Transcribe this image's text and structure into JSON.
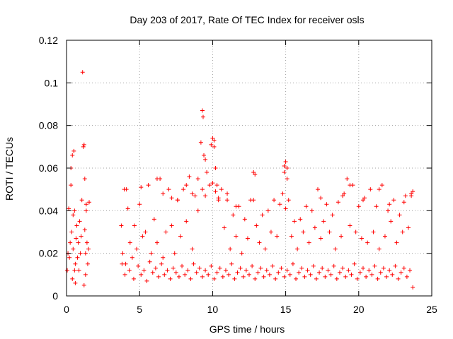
{
  "chart_data": {
    "type": "scatter",
    "title": "Day 203 of 2017, Rate Of TEC Index for receiver osls",
    "xlabel": "GPS time / hours",
    "ylabel": "ROTI / TECUs",
    "xlim": [
      0,
      25
    ],
    "ylim": [
      0,
      0.12
    ],
    "xticks": [
      0,
      5,
      10,
      15,
      20,
      25
    ],
    "xtick_labels": [
      "0",
      "5",
      "10",
      "15",
      "20",
      "25"
    ],
    "yticks": [
      0,
      0.02,
      0.04,
      0.06,
      0.08,
      0.1,
      0.12
    ],
    "ytick_labels": [
      "0",
      "0.02",
      "0.04",
      "0.06",
      "0.08",
      "0.1",
      "0.12"
    ],
    "grid": true,
    "marker": "+",
    "color": "#ff0000",
    "series": [
      {
        "x": [
          0.05,
          0.1,
          0.15,
          0.2,
          0.25,
          0.3,
          0.35,
          0.4,
          0.45,
          0.5,
          0.55,
          0.6,
          0.65,
          0.7,
          0.75,
          0.8,
          0.85,
          0.9,
          0.95,
          1.0,
          1.05,
          1.1,
          1.15,
          1.2,
          1.25,
          1.3,
          1.35,
          1.4,
          1.45,
          1.5,
          1.55,
          0.4,
          0.55,
          0.6,
          1.2,
          1.25,
          1.3,
          1.35,
          0.3,
          0.45,
          3.75,
          3.85,
          3.95,
          4.05,
          4.2,
          4.35,
          4.5,
          4.65,
          4.8,
          5.0,
          5.2,
          5.4,
          5.6,
          5.8,
          6.0,
          6.2,
          6.4,
          6.6,
          6.8,
          7.0,
          7.2,
          7.4,
          7.6,
          7.8,
          8.0,
          8.2,
          8.4,
          8.6,
          8.8,
          9.0,
          9.2,
          9.3,
          9.35,
          9.4,
          9.5,
          9.6,
          9.8,
          10.0,
          10.1,
          10.2,
          10.3,
          10.4,
          10.6,
          10.8,
          11.0,
          11.2,
          11.4,
          11.6,
          11.8,
          12.0,
          12.2,
          12.4,
          12.6,
          12.8,
          12.9,
          13.0,
          13.2,
          13.4,
          13.6,
          13.8,
          14.0,
          14.2,
          14.4,
          14.6,
          14.8,
          14.9,
          15.0,
          15.1,
          15.2,
          15.4,
          15.6,
          15.8,
          16.0,
          16.2,
          16.4,
          16.6,
          16.8,
          17.0,
          17.2,
          17.4,
          17.6,
          17.8,
          18.0,
          18.2,
          18.4,
          18.6,
          18.8,
          19.0,
          19.2,
          19.4,
          19.6,
          19.8,
          20.0,
          20.2,
          20.4,
          20.6,
          20.8,
          21.0,
          21.2,
          21.4,
          21.6,
          21.8,
          22.0,
          22.2,
          22.4,
          22.6,
          22.8,
          23.0,
          23.2,
          23.4,
          23.6,
          23.7,
          3.8,
          4.0,
          4.3,
          4.6,
          4.9,
          5.1,
          5.3,
          5.5,
          5.7,
          5.9,
          6.1,
          6.3,
          6.5,
          6.7,
          6.9,
          7.1,
          7.3,
          7.5,
          7.7,
          7.9,
          8.1,
          8.3,
          8.5,
          8.7,
          8.9,
          9.1,
          9.3,
          9.5,
          9.7,
          9.9,
          10.1,
          10.3,
          10.5,
          10.7,
          10.9,
          11.1,
          11.3,
          11.5,
          11.7,
          11.9,
          12.1,
          12.3,
          12.5,
          12.7,
          12.9,
          13.1,
          13.3,
          13.5,
          13.7,
          13.9,
          14.1,
          14.3,
          14.5,
          14.7,
          14.9,
          15.1,
          15.3,
          15.5,
          15.7,
          15.9,
          16.1,
          16.3,
          16.5,
          16.7,
          16.9,
          17.1,
          17.3,
          17.5,
          17.7,
          17.9,
          18.1,
          18.3,
          18.5,
          18.7,
          18.9,
          19.1,
          19.3,
          19.5,
          19.7,
          19.9,
          20.1,
          20.3,
          20.5,
          20.7,
          20.9,
          21.1,
          21.3,
          21.5,
          21.7,
          21.9,
          22.1,
          22.3,
          22.5,
          22.7,
          22.9,
          23.1,
          23.3,
          23.5,
          23.7,
          8.2,
          8.6,
          9.0,
          9.3,
          9.5,
          10.0,
          10.2,
          10.4,
          11.0,
          11.6,
          12.8,
          14.9,
          15.1,
          15.0,
          17.4,
          18.9,
          19.4,
          20.3,
          21.4,
          22.1,
          23.1,
          23.6,
          6.2,
          6.6,
          7.2,
          7.6,
          4.1,
          5.1,
          9.9,
          10.1
        ],
        "y": [
          0.012,
          0.02,
          0.041,
          0.018,
          0.025,
          0.06,
          0.03,
          0.066,
          0.022,
          0.068,
          0.04,
          0.015,
          0.027,
          0.033,
          0.018,
          0.025,
          0.012,
          0.035,
          0.02,
          0.028,
          0.045,
          0.105,
          0.07,
          0.071,
          0.031,
          0.02,
          0.043,
          0.025,
          0.015,
          0.022,
          0.044,
          0.008,
          0.012,
          0.006,
          0.005,
          0.055,
          0.01,
          0.04,
          0.052,
          0.038,
          0.033,
          0.02,
          0.05,
          0.015,
          0.041,
          0.025,
          0.018,
          0.033,
          0.022,
          0.043,
          0.028,
          0.03,
          0.052,
          0.02,
          0.036,
          0.025,
          0.055,
          0.018,
          0.03,
          0.05,
          0.033,
          0.02,
          0.045,
          0.028,
          0.05,
          0.035,
          0.056,
          0.022,
          0.047,
          0.04,
          0.072,
          0.087,
          0.084,
          0.066,
          0.064,
          0.058,
          0.052,
          0.074,
          0.073,
          0.06,
          0.052,
          0.045,
          0.05,
          0.032,
          0.048,
          0.022,
          0.038,
          0.028,
          0.042,
          0.02,
          0.036,
          0.027,
          0.045,
          0.058,
          0.057,
          0.033,
          0.025,
          0.038,
          0.022,
          0.04,
          0.03,
          0.045,
          0.028,
          0.043,
          0.048,
          0.061,
          0.063,
          0.06,
          0.045,
          0.028,
          0.035,
          0.022,
          0.036,
          0.03,
          0.042,
          0.025,
          0.04,
          0.032,
          0.05,
          0.027,
          0.035,
          0.043,
          0.03,
          0.038,
          0.022,
          0.044,
          0.028,
          0.048,
          0.055,
          0.033,
          0.052,
          0.03,
          0.042,
          0.027,
          0.046,
          0.025,
          0.05,
          0.03,
          0.042,
          0.022,
          0.052,
          0.028,
          0.04,
          0.035,
          0.045,
          0.025,
          0.038,
          0.03,
          0.047,
          0.032,
          0.048,
          0.049,
          0.015,
          0.01,
          0.012,
          0.008,
          0.014,
          0.01,
          0.012,
          0.007,
          0.016,
          0.011,
          0.013,
          0.009,
          0.015,
          0.01,
          0.012,
          0.008,
          0.013,
          0.011,
          0.009,
          0.014,
          0.01,
          0.012,
          0.008,
          0.015,
          0.011,
          0.013,
          0.009,
          0.012,
          0.01,
          0.014,
          0.008,
          0.011,
          0.013,
          0.009,
          0.012,
          0.01,
          0.015,
          0.008,
          0.011,
          0.013,
          0.009,
          0.012,
          0.01,
          0.014,
          0.008,
          0.011,
          0.013,
          0.009,
          0.012,
          0.01,
          0.014,
          0.008,
          0.011,
          0.013,
          0.009,
          0.012,
          0.01,
          0.015,
          0.008,
          0.011,
          0.013,
          0.009,
          0.012,
          0.01,
          0.014,
          0.008,
          0.011,
          0.013,
          0.009,
          0.012,
          0.01,
          0.014,
          0.008,
          0.011,
          0.013,
          0.009,
          0.012,
          0.01,
          0.015,
          0.008,
          0.011,
          0.013,
          0.009,
          0.012,
          0.01,
          0.014,
          0.008,
          0.011,
          0.013,
          0.009,
          0.012,
          0.01,
          0.014,
          0.008,
          0.011,
          0.013,
          0.009,
          0.012,
          0.004,
          0.052,
          0.048,
          0.055,
          0.05,
          0.047,
          0.053,
          0.049,
          0.046,
          0.045,
          0.042,
          0.045,
          0.058,
          0.055,
          0.041,
          0.046,
          0.047,
          0.052,
          0.045,
          0.05,
          0.043,
          0.044,
          0.047,
          0.055,
          0.048,
          0.046,
          0.045,
          0.05,
          0.051,
          0.071,
          0.07
        ]
      }
    ]
  }
}
